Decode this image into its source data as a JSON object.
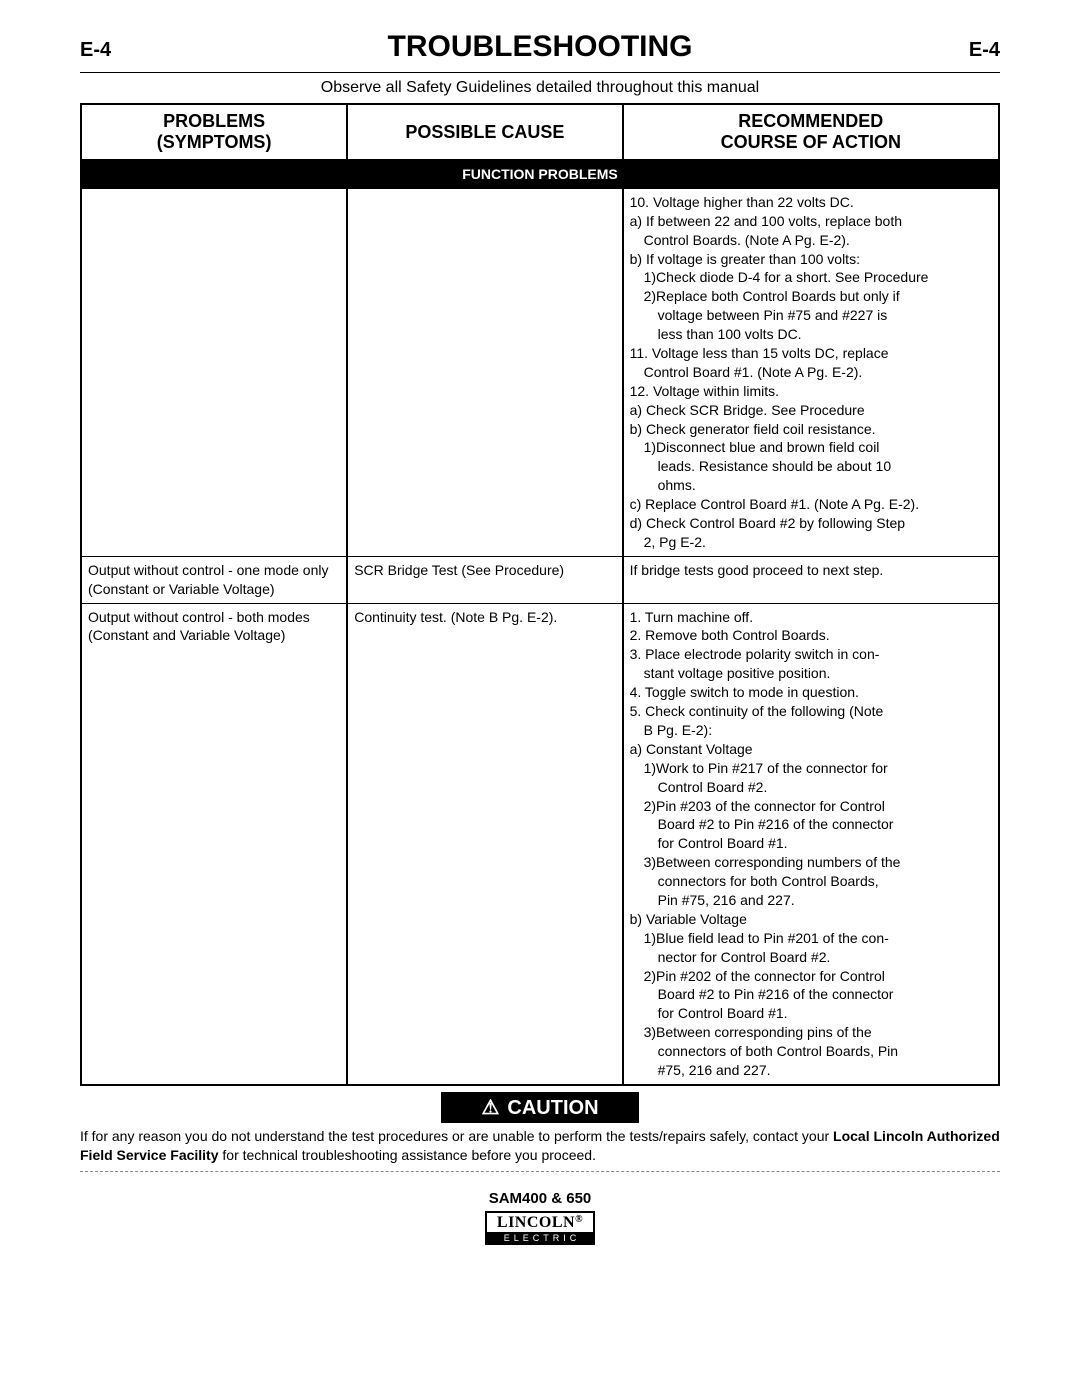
{
  "header": {
    "page_left": "E-4",
    "title": "TROUBLESHOOTING",
    "page_right": "E-4"
  },
  "safety_note": "Observe all Safety Guidelines detailed throughout this manual",
  "columns": {
    "problems_l1": "PROBLEMS",
    "problems_l2": "(SYMPTOMS)",
    "cause": "POSSIBLE CAUSE",
    "action_l1": "RECOMMENDED",
    "action_l2": "COURSE OF ACTION"
  },
  "section_bar": "FUNCTION PROBLEMS",
  "rows": [
    {
      "problem": "",
      "cause": "",
      "action_lines": [
        {
          "cls": "",
          "t": "10.  Voltage higher than 22 volts DC."
        },
        {
          "cls": "",
          "t": "a)  If between 22 and 100 volts, replace both"
        },
        {
          "cls": "pad-l1",
          "t": "Control Boards.  (Note A Pg. E-2)."
        },
        {
          "cls": "",
          "t": "b)  If voltage is greater than 100 volts:"
        },
        {
          "cls": "pad-l1",
          "t": "1)Check diode D-4 for a short. See Procedure"
        },
        {
          "cls": "pad-l1",
          "t": "2)Replace both Control Boards but only if"
        },
        {
          "cls": "pad-l2",
          "t": "voltage between Pin #75 and #227 is"
        },
        {
          "cls": "pad-l2",
          "t": "less than 100 volts DC."
        },
        {
          "cls": "",
          "t": "11.  Voltage less than 15 volts DC, replace"
        },
        {
          "cls": "pad-l1",
          "t": "Control Board #1.   (Note A Pg. E-2)."
        },
        {
          "cls": "",
          "t": "12.  Voltage within limits."
        },
        {
          "cls": "",
          "t": "a)  Check SCR Bridge. See Procedure"
        },
        {
          "cls": "",
          "t": "b)  Check generator field coil resistance."
        },
        {
          "cls": "pad-l1",
          "t": "1)Disconnect blue and brown field coil"
        },
        {
          "cls": "pad-l2",
          "t": "leads. Resistance should be about 10"
        },
        {
          "cls": "pad-l2",
          "t": "ohms."
        },
        {
          "cls": "",
          "t": "c)  Replace Control Board #1.  (Note A Pg. E-2)."
        },
        {
          "cls": "",
          "t": "d)  Check Control Board #2 by following Step"
        },
        {
          "cls": "pad-l1",
          "t": "2, Pg E-2."
        }
      ]
    },
    {
      "problem": "Output without control - one   mode only (Constant or Variable Voltage)",
      "cause": "SCR Bridge Test (See Procedure)",
      "action_lines": [
        {
          "cls": "",
          "t": "If bridge tests good proceed to next step."
        }
      ]
    },
    {
      "problem": "Output without control - both modes (Constant and Variable Voltage)",
      "cause": "Continuity test.  (Note B Pg. E-2).",
      "action_lines": [
        {
          "cls": "",
          "t": "1.    Turn machine off."
        },
        {
          "cls": "",
          "t": "2.    Remove both Control Boards."
        },
        {
          "cls": "",
          "t": "3.    Place electrode polarity switch in  con-"
        },
        {
          "cls": "pad-l1",
          "t": "stant voltage positive position."
        },
        {
          "cls": "",
          "t": "4.    Toggle switch to mode in question."
        },
        {
          "cls": "",
          "t": "5.    Check continuity of the following   (Note"
        },
        {
          "cls": "pad-l1",
          "t": "B Pg. E-2):"
        },
        {
          "cls": "",
          "t": "a)  Constant Voltage"
        },
        {
          "cls": "pad-l1",
          "t": "1)Work to Pin #217 of the connector for"
        },
        {
          "cls": "pad-l2",
          "t": "Control Board #2."
        },
        {
          "cls": "pad-l1",
          "t": "2)Pin #203 of the connector for Control"
        },
        {
          "cls": "pad-l2",
          "t": "Board #2 to Pin #216 of the connector"
        },
        {
          "cls": "pad-l2",
          "t": "for Control Board #1."
        },
        {
          "cls": "pad-l1",
          "t": "3)Between corresponding numbers of the"
        },
        {
          "cls": "pad-l2",
          "t": "connectors for both Control     Boards,"
        },
        {
          "cls": "pad-l2",
          "t": "Pin #75, 216 and 227."
        },
        {
          "cls": "",
          "t": "b)  Variable Voltage"
        },
        {
          "cls": "pad-l1",
          "t": "1)Blue field lead to Pin #201 of the con-"
        },
        {
          "cls": "pad-l2",
          "t": "nector for Control Board #2."
        },
        {
          "cls": "pad-l1",
          "t": "2)Pin #202 of the connector for Control"
        },
        {
          "cls": "pad-l2",
          "t": "Board #2 to Pin #216 of the connector"
        },
        {
          "cls": "pad-l2",
          "t": "for Control Board #1."
        },
        {
          "cls": "pad-l1",
          "t": "3)Between corresponding pins of the"
        },
        {
          "cls": "pad-l2",
          "t": "connectors of both Control Boards, Pin"
        },
        {
          "cls": "pad-l2",
          "t": "#75, 216 and 227."
        }
      ]
    }
  ],
  "caution": {
    "icon": "⚠",
    "label": "CAUTION",
    "text_before": "If for any reason you do not understand the test procedures or are unable to perform the tests/repairs safely, contact your ",
    "text_bold": "Local Lincoln Authorized Field Service Facility",
    "text_after": " for technical troubleshooting assistance before you proceed."
  },
  "footer": {
    "model": "SAM400 & 650",
    "logo_top": "LINCOLN",
    "logo_reg": "®",
    "logo_bot": "ELECTRIC"
  }
}
